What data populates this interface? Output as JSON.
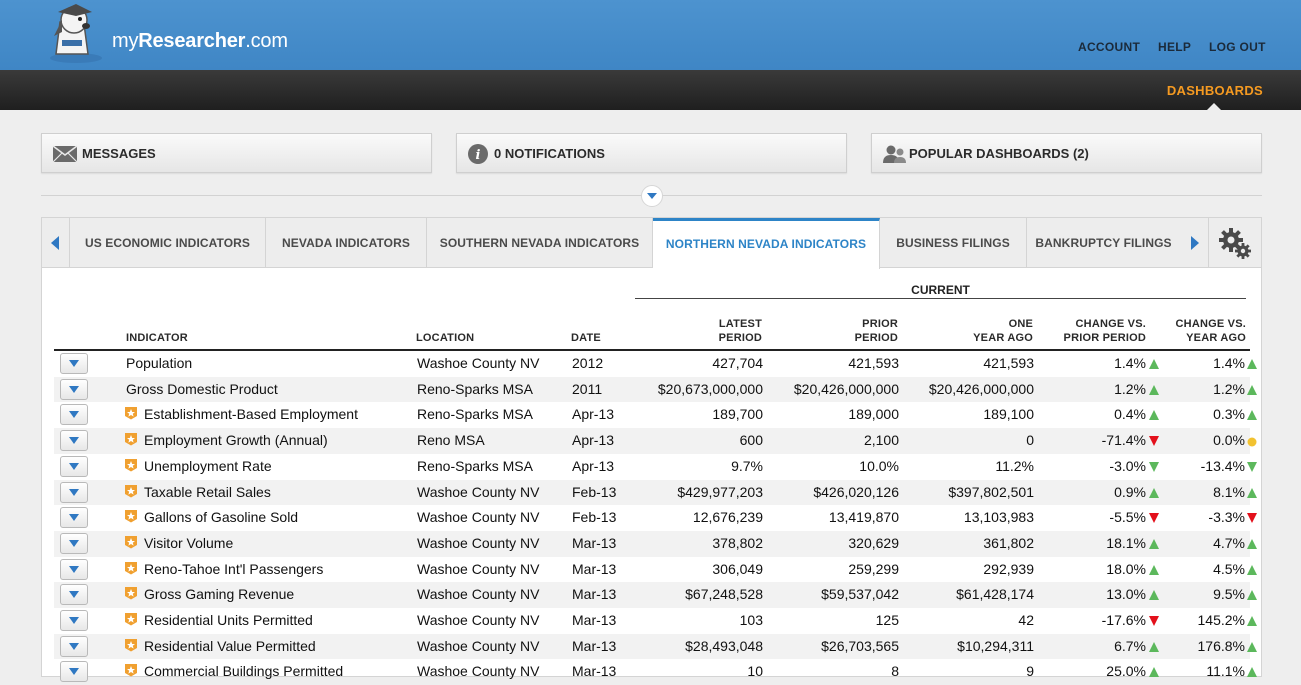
{
  "header": {
    "logo_text_prefix": "my",
    "logo_text_bold": "Researcher",
    "logo_text_suffix": ".com",
    "nav": [
      "ACCOUNT",
      "HELP",
      "LOG OUT"
    ],
    "dashboards_label": "DASHBOARDS",
    "accent_color": "#f59a21"
  },
  "widgets": {
    "messages": "MESSAGES",
    "notifications": "0 NOTIFICATIONS",
    "popular": "POPULAR DASHBOARDS (2)"
  },
  "tabs": [
    {
      "label": "US ECONOMIC INDICATORS",
      "active": false
    },
    {
      "label": "NEVADA INDICATORS",
      "active": false
    },
    {
      "label": "SOUTHERN NEVADA INDICATORS",
      "active": false
    },
    {
      "label": "NORTHERN NEVADA INDICATORS",
      "active": true
    },
    {
      "label": "BUSINESS FILINGS",
      "active": false
    },
    {
      "label": "BANKRUPTCY FILINGS",
      "active": false
    }
  ],
  "table": {
    "group_header": "CURRENT",
    "headers": {
      "indicator": "INDICATOR",
      "location": "LOCATION",
      "date": "DATE",
      "latest_1": "LATEST",
      "latest_2": "PERIOD",
      "prior_1": "PRIOR",
      "prior_2": "PERIOD",
      "year_1": "ONE",
      "year_2": "YEAR AGO",
      "chg1_1": "CHANGE VS.",
      "chg1_2": "PRIOR PERIOD",
      "chg2_1": "CHANGE VS.",
      "chg2_2": "YEAR AGO"
    },
    "rows": [
      {
        "indicator": "Population",
        "badge": false,
        "location": "Washoe County NV",
        "date": "2012",
        "latest": "427,704",
        "prior": "421,593",
        "year_ago": "421,593",
        "chg_prior": "1.4%",
        "trend_prior": "up",
        "chg_year": "1.4%",
        "trend_year": "up"
      },
      {
        "indicator": "Gross Domestic Product",
        "badge": false,
        "location": "Reno-Sparks MSA",
        "date": "2011",
        "latest": "$20,673,000,000",
        "prior": "$20,426,000,000",
        "year_ago": "$20,426,000,000",
        "chg_prior": "1.2%",
        "trend_prior": "up",
        "chg_year": "1.2%",
        "trend_year": "up"
      },
      {
        "indicator": "Establishment-Based Employment",
        "badge": true,
        "location": "Reno-Sparks MSA",
        "date": "Apr-13",
        "latest": "189,700",
        "prior": "189,000",
        "year_ago": "189,100",
        "chg_prior": "0.4%",
        "trend_prior": "up",
        "chg_year": "0.3%",
        "trend_year": "up"
      },
      {
        "indicator": "Employment Growth (Annual)",
        "badge": true,
        "location": "Reno MSA",
        "date": "Apr-13",
        "latest": "600",
        "prior": "2,100",
        "year_ago": "0",
        "chg_prior": "-71.4%",
        "trend_prior": "down-red",
        "chg_year": "0.0%",
        "trend_year": "flat"
      },
      {
        "indicator": "Unemployment Rate",
        "badge": true,
        "location": "Reno-Sparks MSA",
        "date": "Apr-13",
        "latest": "9.7%",
        "prior": "10.0%",
        "year_ago": "11.2%",
        "chg_prior": "-3.0%",
        "trend_prior": "down-green",
        "chg_year": "-13.4%",
        "trend_year": "down-green"
      },
      {
        "indicator": "Taxable Retail Sales",
        "badge": true,
        "location": "Washoe County NV",
        "date": "Feb-13",
        "latest": "$429,977,203",
        "prior": "$426,020,126",
        "year_ago": "$397,802,501",
        "chg_prior": "0.9%",
        "trend_prior": "up",
        "chg_year": "8.1%",
        "trend_year": "up"
      },
      {
        "indicator": "Gallons of Gasoline Sold",
        "badge": true,
        "location": "Washoe County NV",
        "date": "Feb-13",
        "latest": "12,676,239",
        "prior": "13,419,870",
        "year_ago": "13,103,983",
        "chg_prior": "-5.5%",
        "trend_prior": "down-red",
        "chg_year": "-3.3%",
        "trend_year": "down-red"
      },
      {
        "indicator": "Visitor Volume",
        "badge": true,
        "location": "Washoe County NV",
        "date": "Mar-13",
        "latest": "378,802",
        "prior": "320,629",
        "year_ago": "361,802",
        "chg_prior": "18.1%",
        "trend_prior": "up",
        "chg_year": "4.7%",
        "trend_year": "up"
      },
      {
        "indicator": "Reno-Tahoe Int'l Passengers",
        "badge": true,
        "location": "Washoe County NV",
        "date": "Mar-13",
        "latest": "306,049",
        "prior": "259,299",
        "year_ago": "292,939",
        "chg_prior": "18.0%",
        "trend_prior": "up",
        "chg_year": "4.5%",
        "trend_year": "up"
      },
      {
        "indicator": "Gross Gaming Revenue",
        "badge": true,
        "location": "Washoe County NV",
        "date": "Mar-13",
        "latest": "$67,248,528",
        "prior": "$59,537,042",
        "year_ago": "$61,428,174",
        "chg_prior": "13.0%",
        "trend_prior": "up",
        "chg_year": "9.5%",
        "trend_year": "up"
      },
      {
        "indicator": "Residential Units Permitted",
        "badge": true,
        "location": "Washoe County NV",
        "date": "Mar-13",
        "latest": "103",
        "prior": "125",
        "year_ago": "42",
        "chg_prior": "-17.6%",
        "trend_prior": "down-red",
        "chg_year": "145.2%",
        "trend_year": "up"
      },
      {
        "indicator": "Residential Value Permitted",
        "badge": true,
        "location": "Washoe County NV",
        "date": "Mar-13",
        "latest": "$28,493,048",
        "prior": "$26,703,565",
        "year_ago": "$10,294,311",
        "chg_prior": "6.7%",
        "trend_prior": "up",
        "chg_year": "176.8%",
        "trend_year": "up"
      },
      {
        "indicator": "Commercial Buildings Permitted",
        "badge": true,
        "location": "Washoe County NV",
        "date": "Mar-13",
        "latest": "10",
        "prior": "8",
        "year_ago": "9",
        "chg_prior": "25.0%",
        "trend_prior": "up",
        "chg_year": "11.1%",
        "trend_year": "up"
      }
    ]
  },
  "trend_colors": {
    "up": "#5cb85c",
    "down-green": "#5cb85c",
    "down-red": "#e3101b",
    "flat": "#f2c230"
  }
}
